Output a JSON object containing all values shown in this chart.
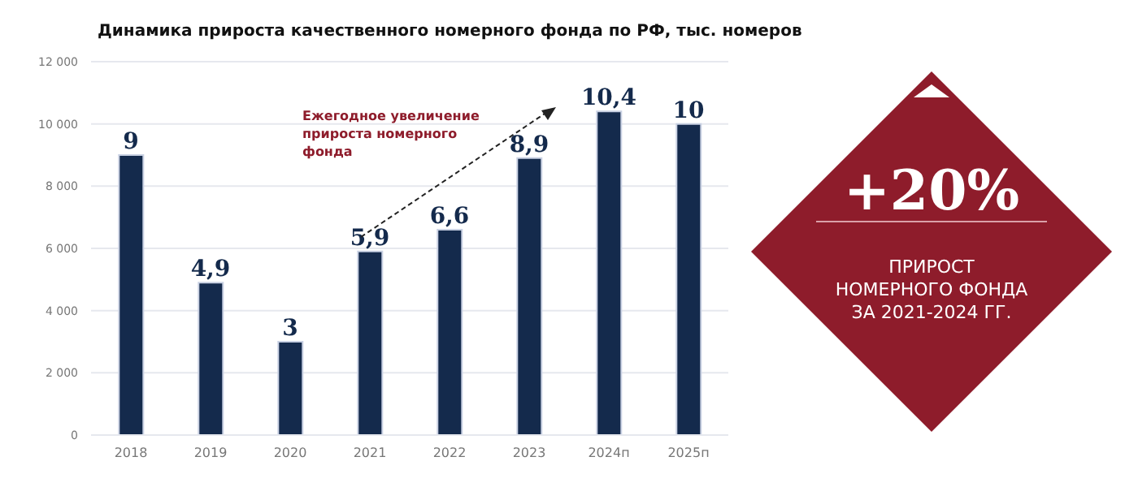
{
  "chart_data": {
    "type": "bar",
    "title": "Динамика прироста качественного номерного фонда по РФ, тыс. номеров",
    "categories": [
      "2018",
      "2019",
      "2020",
      "2021",
      "2022",
      "2023",
      "2024п",
      "2025п"
    ],
    "values": [
      9000,
      4900,
      3000,
      5900,
      6600,
      8900,
      10400,
      10000
    ],
    "color": "#142a4c",
    "ylim": [
      0,
      12000
    ],
    "yticks": [
      0,
      {
        "value": 2000,
        "label": "2 000"
      },
      {
        "value": 4000,
        "label": "4 000"
      },
      {
        "value": 6000,
        "label": "6 000"
      },
      {
        "value": 8000,
        "label": "8 000"
      },
      {
        "value": 10000,
        "label": "10 000"
      },
      {
        "value": 12000,
        "label": "12 000"
      }
    ],
    "grid": "y",
    "annotations": [
      "Ежегодное увеличение прироста номерного фонда",
      "+20%",
      "ПРИРОСТ НОМЕРНОГО ФОНДА ЗА 2021-2024 ГГ.",
      {
        "text": "9",
        "x": "2018",
        "y": 9000
      },
      {
        "text": "4,9",
        "x": "2019",
        "y": 4900
      },
      {
        "text": "3",
        "x": "2020",
        "y": 3000
      },
      {
        "text": "5,9",
        "x": "2021",
        "y": 5900
      },
      {
        "text": "6,6",
        "x": "2022",
        "y": 6600
      },
      {
        "text": "8,9",
        "x": "2023",
        "y": 8900
      },
      {
        "text": "10,4",
        "x": "2024п",
        "y": 10400
      },
      {
        "text": "10",
        "x": "2025п",
        "y": 10000
      }
    ]
  }
}
